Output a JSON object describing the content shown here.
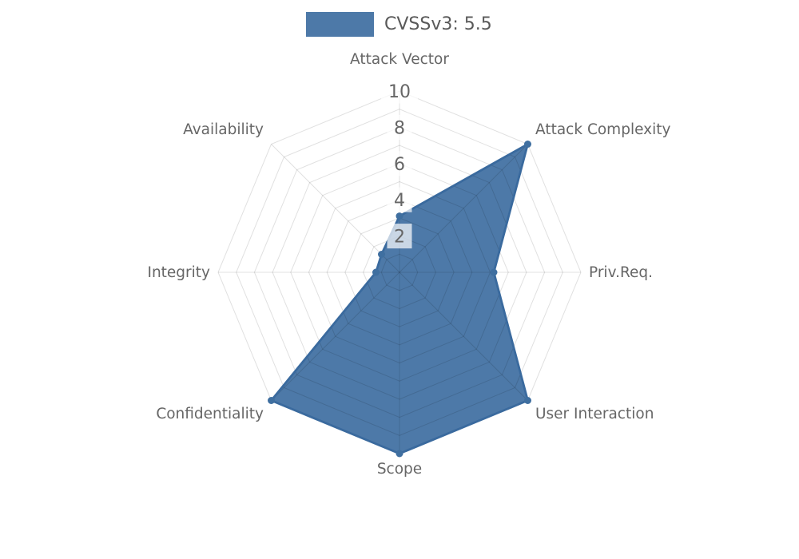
{
  "background": "#ffffff",
  "colors": {
    "series_fill": "#4d79a8",
    "series_edge": "#3a6a9e",
    "marker": "#3f6fa0",
    "grid_line": "rgba(0,0,0,0.12)",
    "axis_label": "#666666",
    "tick_label": "#666666",
    "tick_box_bg": "rgba(255,255,255,0.70)",
    "legend_text": "#595959"
  },
  "chart_data": {
    "type": "radar",
    "title": "",
    "legend_label": "CVSSv3: 5.5",
    "legend_swatch_color": "#4d79a8",
    "legend_position": "top-center",
    "categories": [
      "Attack Vector",
      "Attack Complexity",
      "Priv.Req.",
      "User Interaction",
      "Scope",
      "Confidentiality",
      "Integrity",
      "Availability"
    ],
    "series": [
      {
        "name": "CVSSv3: 5.5",
        "values": [
          3.1,
          10,
          5.2,
          10,
          10,
          10,
          1.3,
          1.4
        ]
      }
    ],
    "radial_ticks": [
      2,
      4,
      6,
      8,
      10
    ],
    "rlim": [
      0,
      10
    ],
    "grid_rings": 10,
    "grid": "on",
    "axes_count": 8,
    "start_axis": "top",
    "direction": "clockwise"
  }
}
